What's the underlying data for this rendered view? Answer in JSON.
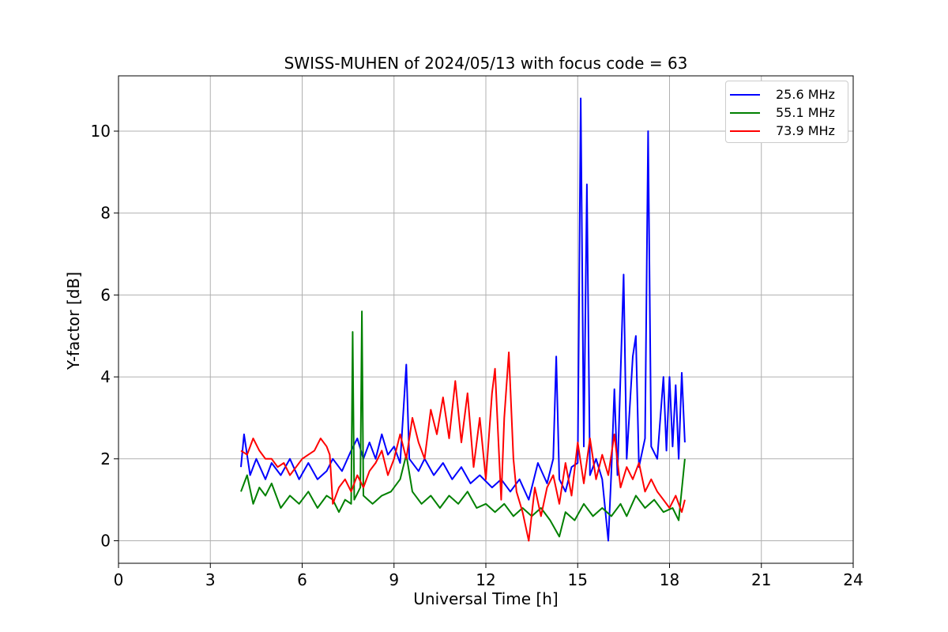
{
  "chart_data": {
    "type": "line",
    "title": "SWISS-MUHEN of 2024/05/13 with focus code = 63",
    "xlabel": "Universal Time [h]",
    "ylabel": "Y-factor [dB]",
    "xlim": [
      0,
      24
    ],
    "ylim": [
      -0.55,
      11.35
    ],
    "xticks": [
      "0",
      "3",
      "6",
      "9",
      "12",
      "15",
      "18",
      "21",
      "24"
    ],
    "yticks": [
      "0",
      "2",
      "4",
      "6",
      "8",
      "10"
    ],
    "grid": true,
    "legend_position": "top-right",
    "series": [
      {
        "name": "25.6 MHz",
        "color": "#0000ff",
        "points": [
          [
            4.0,
            1.8
          ],
          [
            4.1,
            2.6
          ],
          [
            4.3,
            1.6
          ],
          [
            4.5,
            2.0
          ],
          [
            4.8,
            1.5
          ],
          [
            5.0,
            1.9
          ],
          [
            5.3,
            1.6
          ],
          [
            5.6,
            2.0
          ],
          [
            5.9,
            1.5
          ],
          [
            6.2,
            1.9
          ],
          [
            6.5,
            1.5
          ],
          [
            6.8,
            1.7
          ],
          [
            7.0,
            2.0
          ],
          [
            7.3,
            1.7
          ],
          [
            7.6,
            2.2
          ],
          [
            7.8,
            2.5
          ],
          [
            8.0,
            2.0
          ],
          [
            8.2,
            2.4
          ],
          [
            8.4,
            2.0
          ],
          [
            8.6,
            2.6
          ],
          [
            8.8,
            2.1
          ],
          [
            9.0,
            2.3
          ],
          [
            9.2,
            1.9
          ],
          [
            9.4,
            4.3
          ],
          [
            9.5,
            2.0
          ],
          [
            9.8,
            1.7
          ],
          [
            10.0,
            2.0
          ],
          [
            10.3,
            1.6
          ],
          [
            10.6,
            1.9
          ],
          [
            10.9,
            1.5
          ],
          [
            11.2,
            1.8
          ],
          [
            11.5,
            1.4
          ],
          [
            11.8,
            1.6
          ],
          [
            12.2,
            1.3
          ],
          [
            12.5,
            1.5
          ],
          [
            12.8,
            1.2
          ],
          [
            13.1,
            1.5
          ],
          [
            13.4,
            1.0
          ],
          [
            13.7,
            1.9
          ],
          [
            14.0,
            1.4
          ],
          [
            14.2,
            2.0
          ],
          [
            14.3,
            4.5
          ],
          [
            14.4,
            1.5
          ],
          [
            14.6,
            1.2
          ],
          [
            14.8,
            1.8
          ],
          [
            15.0,
            1.9
          ],
          [
            15.1,
            10.8
          ],
          [
            15.2,
            2.3
          ],
          [
            15.3,
            8.7
          ],
          [
            15.4,
            1.6
          ],
          [
            15.6,
            2.0
          ],
          [
            15.8,
            1.5
          ],
          [
            16.0,
            0.0
          ],
          [
            16.1,
            1.7
          ],
          [
            16.2,
            3.7
          ],
          [
            16.3,
            1.6
          ],
          [
            16.5,
            6.5
          ],
          [
            16.6,
            2.0
          ],
          [
            16.8,
            4.5
          ],
          [
            16.9,
            5.0
          ],
          [
            17.0,
            1.8
          ],
          [
            17.2,
            2.5
          ],
          [
            17.3,
            10.0
          ],
          [
            17.4,
            2.3
          ],
          [
            17.6,
            2.0
          ],
          [
            17.8,
            4.0
          ],
          [
            17.9,
            2.2
          ],
          [
            18.0,
            4.0
          ],
          [
            18.1,
            2.3
          ],
          [
            18.2,
            3.8
          ],
          [
            18.3,
            2.0
          ],
          [
            18.4,
            4.1
          ],
          [
            18.5,
            2.4
          ]
        ]
      },
      {
        "name": "55.1 MHz",
        "color": "#008000",
        "points": [
          [
            4.0,
            1.2
          ],
          [
            4.2,
            1.6
          ],
          [
            4.4,
            0.9
          ],
          [
            4.6,
            1.3
          ],
          [
            4.8,
            1.1
          ],
          [
            5.0,
            1.4
          ],
          [
            5.3,
            0.8
          ],
          [
            5.6,
            1.1
          ],
          [
            5.9,
            0.9
          ],
          [
            6.2,
            1.2
          ],
          [
            6.5,
            0.8
          ],
          [
            6.8,
            1.1
          ],
          [
            7.0,
            1.0
          ],
          [
            7.2,
            0.7
          ],
          [
            7.4,
            1.0
          ],
          [
            7.6,
            0.9
          ],
          [
            7.65,
            5.1
          ],
          [
            7.7,
            1.0
          ],
          [
            7.9,
            1.3
          ],
          [
            7.95,
            5.6
          ],
          [
            8.0,
            1.1
          ],
          [
            8.3,
            0.9
          ],
          [
            8.6,
            1.1
          ],
          [
            8.9,
            1.2
          ],
          [
            9.2,
            1.5
          ],
          [
            9.4,
            2.1
          ],
          [
            9.6,
            1.2
          ],
          [
            9.9,
            0.9
          ],
          [
            10.2,
            1.1
          ],
          [
            10.5,
            0.8
          ],
          [
            10.8,
            1.1
          ],
          [
            11.1,
            0.9
          ],
          [
            11.4,
            1.2
          ],
          [
            11.7,
            0.8
          ],
          [
            12.0,
            0.9
          ],
          [
            12.3,
            0.7
          ],
          [
            12.6,
            0.9
          ],
          [
            12.9,
            0.6
          ],
          [
            13.2,
            0.8
          ],
          [
            13.5,
            0.6
          ],
          [
            13.8,
            0.8
          ],
          [
            14.1,
            0.5
          ],
          [
            14.4,
            0.1
          ],
          [
            14.6,
            0.7
          ],
          [
            14.9,
            0.5
          ],
          [
            15.2,
            0.9
          ],
          [
            15.5,
            0.6
          ],
          [
            15.8,
            0.8
          ],
          [
            16.1,
            0.6
          ],
          [
            16.4,
            0.9
          ],
          [
            16.6,
            0.6
          ],
          [
            16.9,
            1.1
          ],
          [
            17.2,
            0.8
          ],
          [
            17.5,
            1.0
          ],
          [
            17.8,
            0.7
          ],
          [
            18.1,
            0.8
          ],
          [
            18.3,
            0.5
          ],
          [
            18.5,
            2.0
          ]
        ]
      },
      {
        "name": "73.9 MHz",
        "color": "#ff0000",
        "points": [
          [
            4.0,
            2.2
          ],
          [
            4.2,
            2.1
          ],
          [
            4.4,
            2.5
          ],
          [
            4.6,
            2.2
          ],
          [
            4.8,
            2.0
          ],
          [
            5.0,
            2.0
          ],
          [
            5.2,
            1.8
          ],
          [
            5.4,
            1.9
          ],
          [
            5.6,
            1.6
          ],
          [
            5.8,
            1.8
          ],
          [
            6.0,
            2.0
          ],
          [
            6.2,
            2.1
          ],
          [
            6.4,
            2.2
          ],
          [
            6.6,
            2.5
          ],
          [
            6.8,
            2.3
          ],
          [
            6.9,
            2.1
          ],
          [
            7.0,
            0.9
          ],
          [
            7.2,
            1.3
          ],
          [
            7.4,
            1.5
          ],
          [
            7.6,
            1.2
          ],
          [
            7.8,
            1.6
          ],
          [
            8.0,
            1.3
          ],
          [
            8.2,
            1.7
          ],
          [
            8.4,
            1.9
          ],
          [
            8.6,
            2.2
          ],
          [
            8.8,
            1.6
          ],
          [
            9.0,
            2.0
          ],
          [
            9.2,
            2.6
          ],
          [
            9.4,
            2.0
          ],
          [
            9.6,
            3.0
          ],
          [
            9.8,
            2.4
          ],
          [
            10.0,
            2.0
          ],
          [
            10.2,
            3.2
          ],
          [
            10.4,
            2.6
          ],
          [
            10.6,
            3.5
          ],
          [
            10.8,
            2.5
          ],
          [
            11.0,
            3.9
          ],
          [
            11.2,
            2.4
          ],
          [
            11.4,
            3.6
          ],
          [
            11.6,
            1.8
          ],
          [
            11.8,
            3.0
          ],
          [
            12.0,
            1.5
          ],
          [
            12.2,
            3.6
          ],
          [
            12.3,
            4.2
          ],
          [
            12.5,
            1.0
          ],
          [
            12.6,
            3.0
          ],
          [
            12.75,
            4.6
          ],
          [
            12.9,
            2.0
          ],
          [
            13.0,
            1.2
          ],
          [
            13.2,
            0.7
          ],
          [
            13.4,
            0.0
          ],
          [
            13.6,
            1.3
          ],
          [
            13.8,
            0.6
          ],
          [
            14.0,
            1.3
          ],
          [
            14.2,
            1.6
          ],
          [
            14.4,
            0.9
          ],
          [
            14.6,
            1.9
          ],
          [
            14.8,
            1.1
          ],
          [
            15.0,
            2.4
          ],
          [
            15.2,
            1.4
          ],
          [
            15.4,
            2.5
          ],
          [
            15.6,
            1.5
          ],
          [
            15.8,
            2.1
          ],
          [
            16.0,
            1.6
          ],
          [
            16.2,
            2.6
          ],
          [
            16.4,
            1.3
          ],
          [
            16.6,
            1.8
          ],
          [
            16.8,
            1.5
          ],
          [
            17.0,
            1.9
          ],
          [
            17.2,
            1.2
          ],
          [
            17.4,
            1.5
          ],
          [
            17.6,
            1.2
          ],
          [
            17.8,
            1.0
          ],
          [
            18.0,
            0.8
          ],
          [
            18.2,
            1.1
          ],
          [
            18.4,
            0.7
          ],
          [
            18.5,
            1.0
          ]
        ]
      }
    ]
  }
}
